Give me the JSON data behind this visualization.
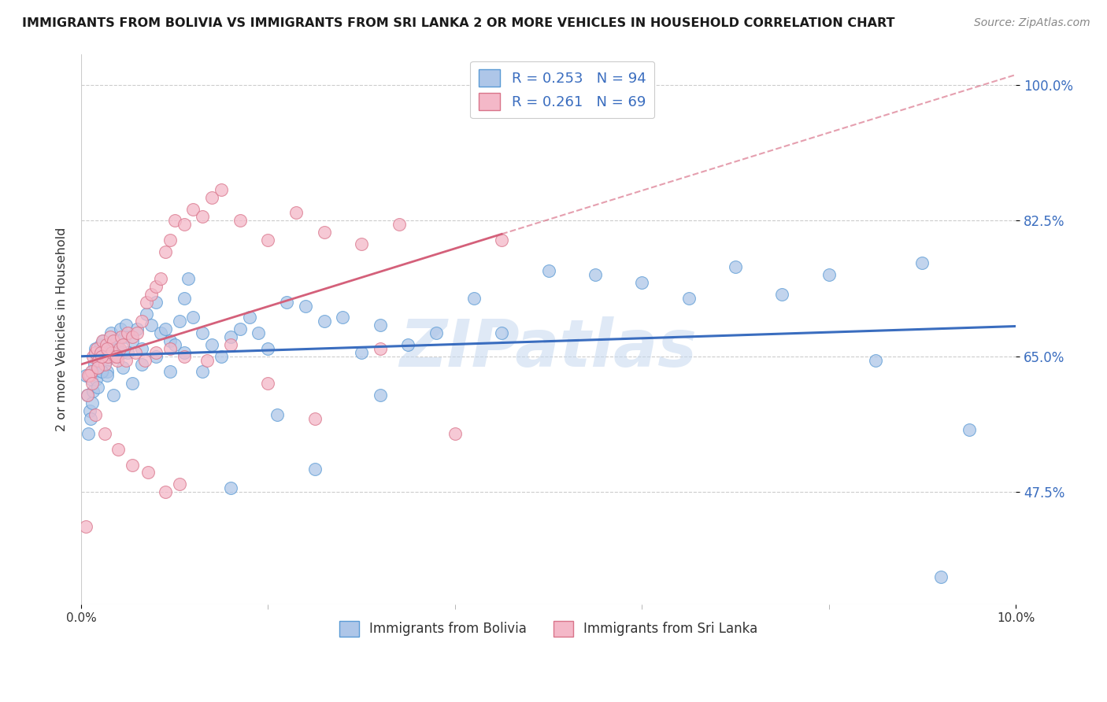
{
  "title": "IMMIGRANTS FROM BOLIVIA VS IMMIGRANTS FROM SRI LANKA 2 OR MORE VEHICLES IN HOUSEHOLD CORRELATION CHART",
  "source": "Source: ZipAtlas.com",
  "ylabel": "2 or more Vehicles in Household",
  "yticks": [
    47.5,
    65.0,
    82.5,
    100.0
  ],
  "xlim": [
    0.0,
    10.0
  ],
  "ylim": [
    33.0,
    104.0
  ],
  "bolivia_color": "#aec6e8",
  "bolivia_edge": "#5b9bd5",
  "srilanka_color": "#f4b8c8",
  "srilanka_edge": "#d9748a",
  "line_bolivia": "#3a6dbf",
  "line_srilanka": "#d4607a",
  "R_bolivia": 0.253,
  "N_bolivia": 94,
  "R_srilanka": 0.261,
  "N_srilanka": 69,
  "bolivia_x": [
    0.05,
    0.07,
    0.09,
    0.1,
    0.11,
    0.12,
    0.13,
    0.14,
    0.15,
    0.16,
    0.17,
    0.18,
    0.19,
    0.2,
    0.21,
    0.22,
    0.23,
    0.24,
    0.25,
    0.26,
    0.27,
    0.28,
    0.29,
    0.3,
    0.32,
    0.34,
    0.36,
    0.38,
    0.4,
    0.42,
    0.44,
    0.46,
    0.48,
    0.5,
    0.55,
    0.6,
    0.65,
    0.7,
    0.75,
    0.8,
    0.85,
    0.9,
    0.95,
    1.0,
    1.05,
    1.1,
    1.15,
    1.2,
    1.3,
    1.4,
    1.5,
    1.6,
    1.7,
    1.8,
    1.9,
    2.0,
    2.2,
    2.4,
    2.6,
    2.8,
    3.0,
    3.2,
    3.5,
    3.8,
    4.2,
    4.5,
    5.0,
    5.5,
    6.0,
    6.5,
    7.0,
    7.5,
    8.0,
    8.5,
    9.0,
    9.2,
    9.5,
    0.08,
    0.12,
    0.18,
    0.22,
    0.28,
    0.35,
    0.45,
    0.55,
    0.65,
    0.8,
    0.95,
    1.1,
    1.3,
    1.6,
    2.1,
    2.5,
    3.2
  ],
  "bolivia_y": [
    62.5,
    60.0,
    58.0,
    57.0,
    62.0,
    63.0,
    60.5,
    64.0,
    66.0,
    62.0,
    65.0,
    63.5,
    64.5,
    65.0,
    66.5,
    64.0,
    63.0,
    67.0,
    65.5,
    66.0,
    64.5,
    63.0,
    65.0,
    66.5,
    68.0,
    66.5,
    65.0,
    67.0,
    66.0,
    68.5,
    65.5,
    67.5,
    69.0,
    65.5,
    67.0,
    68.5,
    66.0,
    70.5,
    69.0,
    72.0,
    68.0,
    68.5,
    67.0,
    66.5,
    69.5,
    72.5,
    75.0,
    70.0,
    68.0,
    66.5,
    65.0,
    67.5,
    68.5,
    70.0,
    68.0,
    66.0,
    72.0,
    71.5,
    69.5,
    70.0,
    65.5,
    69.0,
    66.5,
    68.0,
    72.5,
    68.0,
    76.0,
    75.5,
    74.5,
    72.5,
    76.5,
    73.0,
    75.5,
    64.5,
    77.0,
    36.5,
    55.5,
    55.0,
    59.0,
    61.0,
    63.0,
    62.5,
    60.0,
    63.5,
    61.5,
    64.0,
    65.0,
    63.0,
    65.5,
    63.0,
    48.0,
    57.5,
    50.5,
    60.0
  ],
  "srilanka_x": [
    0.05,
    0.07,
    0.09,
    0.11,
    0.13,
    0.15,
    0.17,
    0.19,
    0.21,
    0.23,
    0.25,
    0.27,
    0.29,
    0.31,
    0.33,
    0.35,
    0.37,
    0.39,
    0.41,
    0.43,
    0.45,
    0.5,
    0.55,
    0.6,
    0.65,
    0.7,
    0.75,
    0.8,
    0.85,
    0.9,
    0.95,
    1.0,
    1.1,
    1.2,
    1.3,
    1.4,
    1.5,
    1.7,
    2.0,
    2.3,
    2.6,
    3.0,
    3.4,
    4.0,
    4.5,
    0.08,
    0.12,
    0.18,
    0.22,
    0.28,
    0.38,
    0.48,
    0.58,
    0.68,
    0.8,
    0.95,
    1.1,
    1.35,
    1.6,
    2.0,
    2.5,
    3.2,
    0.15,
    0.25,
    0.4,
    0.55,
    0.72,
    0.9,
    1.05
  ],
  "srilanka_y": [
    43.0,
    60.0,
    62.5,
    63.0,
    65.0,
    65.5,
    66.0,
    64.5,
    65.5,
    67.0,
    64.0,
    66.5,
    65.0,
    67.5,
    65.5,
    67.0,
    65.0,
    64.5,
    66.0,
    67.5,
    66.5,
    68.0,
    67.5,
    68.0,
    69.5,
    72.0,
    73.0,
    74.0,
    75.0,
    78.5,
    80.0,
    82.5,
    82.0,
    84.0,
    83.0,
    85.5,
    86.5,
    82.5,
    80.0,
    83.5,
    81.0,
    79.5,
    82.0,
    55.0,
    80.0,
    62.5,
    61.5,
    63.5,
    65.0,
    66.0,
    65.0,
    64.5,
    65.5,
    64.5,
    65.5,
    66.0,
    65.0,
    64.5,
    66.5,
    61.5,
    57.0,
    66.0,
    57.5,
    55.0,
    53.0,
    51.0,
    50.0,
    47.5,
    48.5
  ],
  "watermark": "ZIPatlas",
  "watermark_color": "#c5d8ef"
}
